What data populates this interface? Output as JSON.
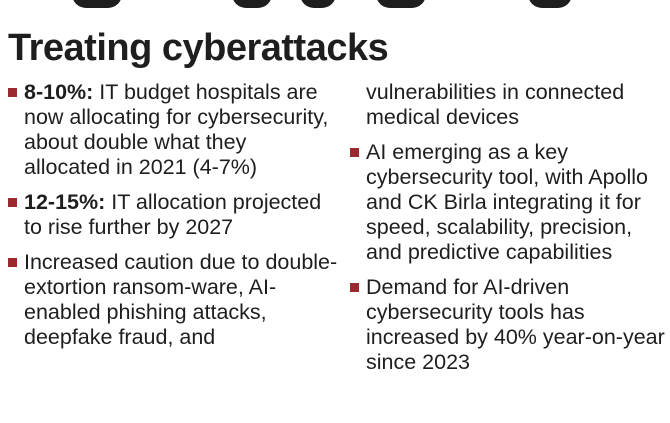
{
  "title": "Treating cyberattacks",
  "accent_color": "#9b2a2e",
  "left_column": [
    {
      "highlight": "8-10%:",
      "text": " IT budget hospitals are now allocating for cybersecurity, about double what they allocated in 2021 (4-7%)"
    },
    {
      "highlight": "12-15%:",
      "text": " IT allocation projected to rise further by 2027"
    },
    {
      "highlight": "",
      "text": "Increased caution due to double-extortion ransom-ware, AI-enabled phishing attacks, deepfake fraud, and"
    }
  ],
  "right_column": {
    "continuation": "vulnerabilities in connected medical devices",
    "bullets": [
      {
        "text": "AI emerging as a key cybersecurity tool, with Apollo and CK Birla integrating it for speed, scalability, precision, and predictive capabilities"
      },
      {
        "text": "Demand for AI-driven cybersecurity tools has increased by 40% year-on-year since 2023"
      }
    ]
  }
}
